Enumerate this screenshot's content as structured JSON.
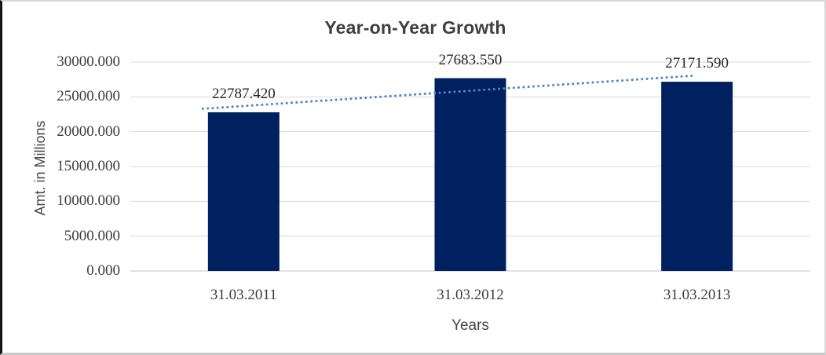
{
  "chart_data": {
    "type": "bar",
    "title": "Year-on-Year Growth",
    "xlabel": "Years",
    "ylabel": "Amt. in Millions",
    "categories": [
      "31.03.2011",
      "31.03.2012",
      "31.03.2013"
    ],
    "values": [
      22787.42,
      27683.55,
      27171.59
    ],
    "data_labels": [
      "22787.420",
      "27683.550",
      "27171.590"
    ],
    "ylim": [
      0,
      30000
    ],
    "ytick_step": 5000,
    "ytick_labels": [
      "0.000",
      "5000.000",
      "10000.000",
      "15000.000",
      "20000.000",
      "25000.000",
      "30000.000"
    ],
    "grid": "horizontal",
    "legend": "none",
    "colors": {
      "bar": "#002060",
      "trendline": "#4e86c8",
      "gridline": "#d9d9d9",
      "axis_line": "#c0c0c0",
      "title_text": "#3f3f3f",
      "tick_text": "#3d3d3d",
      "label_text": "#262626"
    },
    "trendline": {
      "fit": "linear",
      "style": "dotted"
    }
  }
}
